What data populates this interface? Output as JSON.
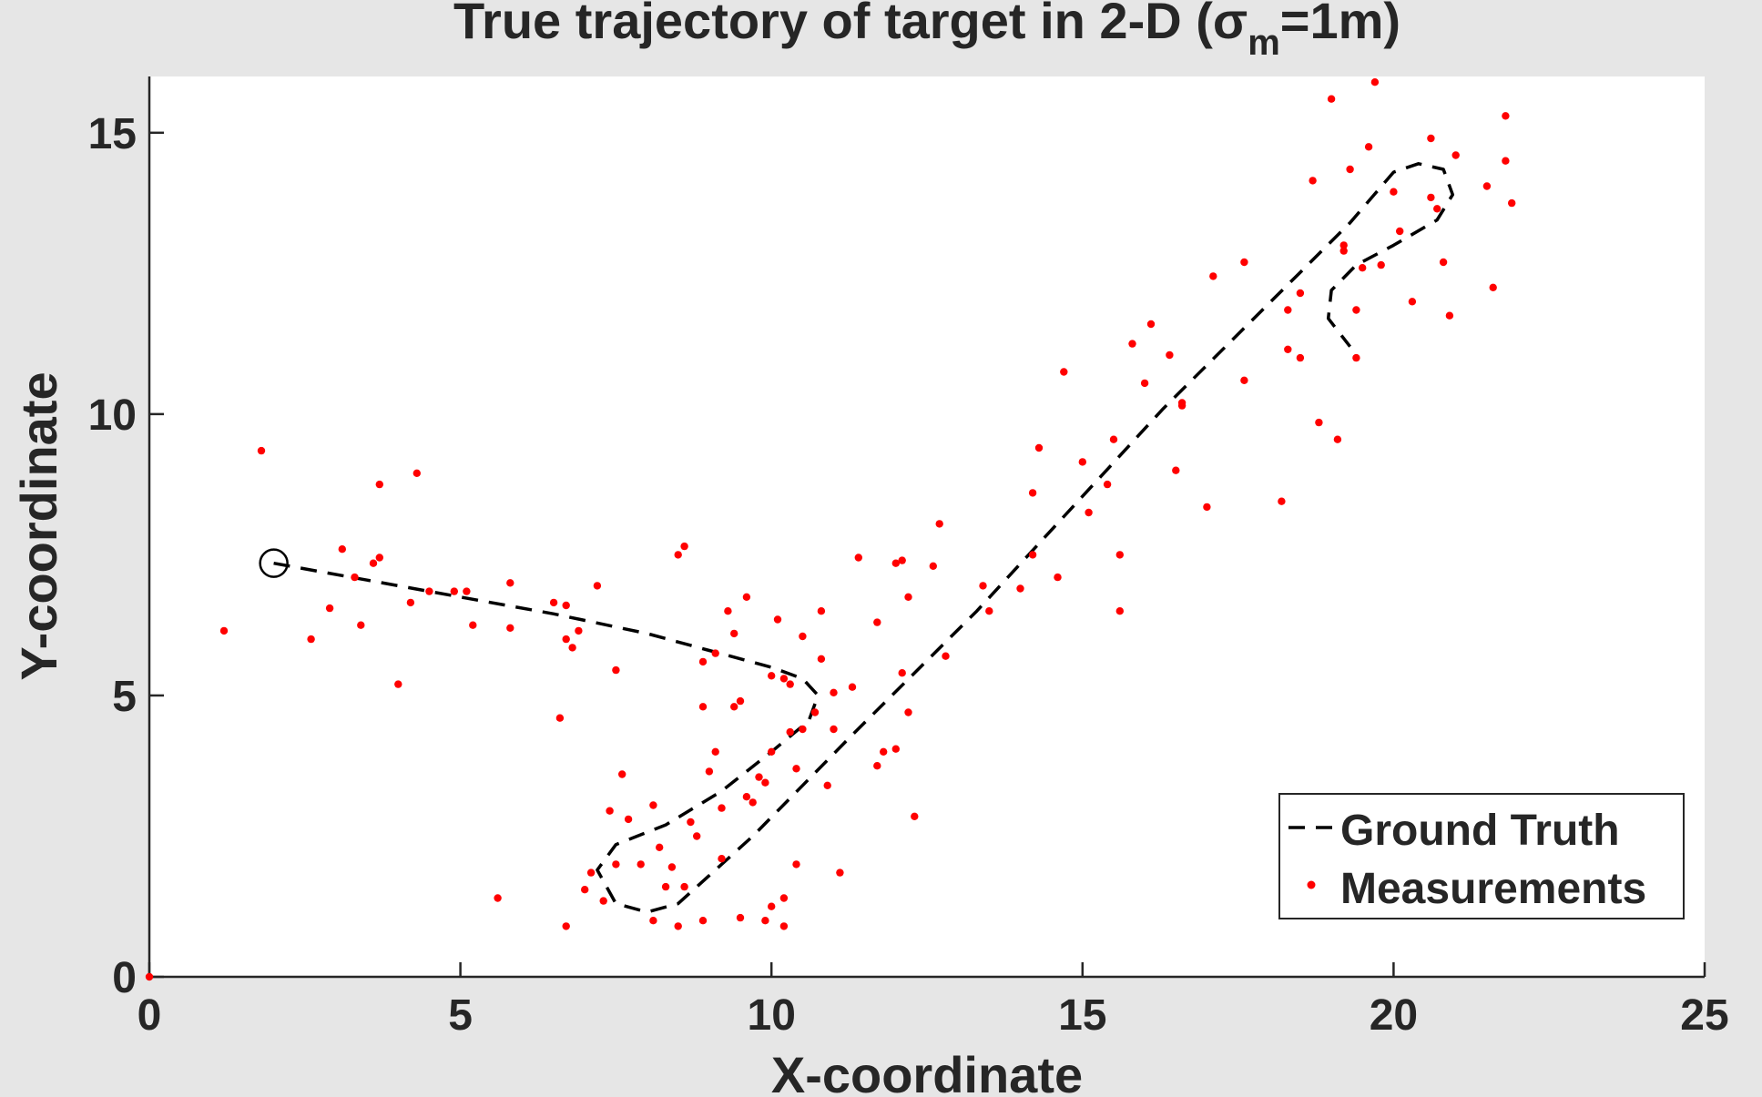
{
  "chart_data": {
    "type": "scatter",
    "title": {
      "main": "True trajectory of target in 2-D (",
      "sigma": "σ",
      "subscript": "m",
      "suffix": "=1m)"
    },
    "xlabel": "X-coordinate",
    "ylabel": "Y-coordinate",
    "xlim": [
      0,
      25
    ],
    "ylim": [
      0,
      16
    ],
    "xticks": [
      0,
      5,
      10,
      15,
      20,
      25
    ],
    "yticks": [
      0,
      5,
      10,
      15
    ],
    "xtick_labels": [
      "0",
      "5",
      "10",
      "15",
      "20",
      "25"
    ],
    "ytick_labels": [
      "0",
      "5",
      "10",
      "15"
    ],
    "grid": false,
    "legend_position": "bottom-right",
    "colors": {
      "ground_truth": "#000000",
      "measurements": "#ff0000",
      "axes_background": "#ffffff",
      "figure_background": "#e6e6e6"
    },
    "start_marker": {
      "x": 2.0,
      "y": 7.35
    },
    "series": [
      {
        "name": "Ground Truth",
        "style": "dashed-line",
        "points": [
          [
            2.0,
            7.35
          ],
          [
            3.5,
            7.05
          ],
          [
            5.0,
            6.75
          ],
          [
            6.5,
            6.45
          ],
          [
            8.0,
            6.1
          ],
          [
            9.0,
            5.8
          ],
          [
            10.0,
            5.5
          ],
          [
            10.5,
            5.3
          ],
          [
            10.75,
            5.0
          ],
          [
            10.6,
            4.55
          ],
          [
            10.0,
            4.0
          ],
          [
            9.2,
            3.3
          ],
          [
            8.3,
            2.7
          ],
          [
            7.5,
            2.35
          ],
          [
            7.2,
            1.9
          ],
          [
            7.5,
            1.3
          ],
          [
            8.0,
            1.15
          ],
          [
            8.5,
            1.3
          ],
          [
            9.0,
            1.8
          ],
          [
            9.7,
            2.5
          ],
          [
            10.5,
            3.4
          ],
          [
            11.3,
            4.3
          ],
          [
            12.3,
            5.4
          ],
          [
            13.3,
            6.5
          ],
          [
            14.3,
            7.7
          ],
          [
            15.3,
            8.9
          ],
          [
            16.3,
            10.1
          ],
          [
            17.3,
            11.2
          ],
          [
            18.3,
            12.3
          ],
          [
            19.3,
            13.4
          ],
          [
            20.0,
            14.3
          ],
          [
            20.4,
            14.45
          ],
          [
            20.8,
            14.35
          ],
          [
            20.95,
            13.9
          ],
          [
            20.7,
            13.45
          ],
          [
            20.0,
            13.0
          ],
          [
            19.4,
            12.65
          ],
          [
            19.0,
            12.2
          ],
          [
            18.95,
            11.7
          ],
          [
            19.3,
            11.2
          ]
        ]
      },
      {
        "name": "Measurements",
        "style": "dots",
        "points": [
          [
            0.0,
            0.0
          ],
          [
            1.2,
            6.15
          ],
          [
            1.8,
            9.35
          ],
          [
            2.6,
            6.0
          ],
          [
            2.9,
            6.55
          ],
          [
            3.1,
            7.6
          ],
          [
            3.3,
            7.1
          ],
          [
            3.4,
            6.25
          ],
          [
            3.6,
            7.35
          ],
          [
            3.7,
            7.45
          ],
          [
            3.7,
            8.75
          ],
          [
            4.0,
            5.2
          ],
          [
            4.2,
            6.65
          ],
          [
            4.3,
            8.95
          ],
          [
            4.5,
            6.85
          ],
          [
            4.9,
            6.85
          ],
          [
            5.1,
            6.85
          ],
          [
            5.2,
            6.25
          ],
          [
            5.8,
            6.2
          ],
          [
            5.8,
            7.0
          ],
          [
            6.5,
            6.65
          ],
          [
            6.6,
            4.6
          ],
          [
            6.7,
            6.6
          ],
          [
            6.7,
            6.0
          ],
          [
            6.8,
            5.85
          ],
          [
            6.9,
            6.15
          ],
          [
            7.2,
            6.95
          ],
          [
            7.5,
            5.45
          ],
          [
            8.5,
            7.5
          ],
          [
            8.6,
            7.65
          ],
          [
            8.9,
            5.6
          ],
          [
            9.1,
            5.75
          ],
          [
            9.3,
            6.5
          ],
          [
            9.4,
            6.1
          ],
          [
            9.6,
            6.75
          ],
          [
            10.1,
            6.35
          ],
          [
            10.2,
            5.3
          ],
          [
            10.3,
            5.2
          ],
          [
            10.5,
            6.05
          ],
          [
            10.8,
            6.5
          ],
          [
            10.8,
            5.65
          ],
          [
            11.0,
            5.05
          ],
          [
            11.3,
            5.15
          ],
          [
            11.4,
            7.45
          ],
          [
            11.7,
            6.3
          ],
          [
            12.1,
            7.4
          ],
          [
            12.2,
            6.75
          ],
          [
            12.6,
            7.3
          ],
          [
            13.4,
            6.95
          ],
          [
            14.2,
            7.5
          ],
          [
            14.3,
            9.4
          ],
          [
            14.6,
            7.1
          ],
          [
            14.7,
            10.75
          ],
          [
            15.1,
            8.25
          ],
          [
            15.4,
            8.75
          ],
          [
            15.6,
            6.5
          ],
          [
            15.6,
            7.5
          ],
          [
            15.8,
            11.25
          ],
          [
            16.1,
            11.6
          ],
          [
            16.4,
            11.05
          ],
          [
            16.5,
            9.0
          ],
          [
            16.6,
            10.2
          ],
          [
            17.0,
            8.35
          ],
          [
            17.1,
            12.45
          ],
          [
            17.6,
            12.7
          ],
          [
            17.6,
            10.6
          ],
          [
            18.2,
            8.45
          ],
          [
            18.3,
            11.15
          ],
          [
            18.5,
            11.0
          ],
          [
            18.7,
            14.15
          ],
          [
            18.8,
            9.85
          ],
          [
            19.0,
            15.6
          ],
          [
            19.1,
            9.55
          ],
          [
            19.2,
            13.0
          ],
          [
            19.3,
            14.35
          ],
          [
            19.4,
            11.85
          ],
          [
            19.4,
            11.0
          ],
          [
            19.6,
            14.75
          ],
          [
            19.7,
            15.9
          ],
          [
            19.8,
            12.65
          ],
          [
            20.0,
            13.95
          ],
          [
            20.1,
            13.25
          ],
          [
            20.3,
            12.0
          ],
          [
            20.6,
            14.9
          ],
          [
            20.6,
            13.85
          ],
          [
            20.8,
            12.7
          ],
          [
            20.9,
            11.75
          ],
          [
            21.0,
            14.6
          ],
          [
            21.5,
            14.05
          ],
          [
            21.6,
            12.25
          ],
          [
            21.8,
            15.3
          ],
          [
            21.9,
            13.75
          ],
          [
            7.4,
            2.95
          ],
          [
            7.5,
            2.0
          ],
          [
            7.6,
            3.6
          ],
          [
            7.7,
            2.8
          ],
          [
            7.9,
            2.0
          ],
          [
            8.1,
            1.0
          ],
          [
            8.1,
            3.05
          ],
          [
            8.2,
            2.3
          ],
          [
            8.3,
            1.6
          ],
          [
            8.5,
            0.9
          ],
          [
            8.6,
            1.6
          ],
          [
            8.7,
            2.75
          ],
          [
            8.8,
            2.5
          ],
          [
            8.9,
            1.0
          ],
          [
            9.0,
            3.65
          ],
          [
            9.1,
            4.0
          ],
          [
            9.2,
            2.1
          ],
          [
            9.5,
            1.05
          ],
          [
            9.5,
            4.9
          ],
          [
            9.6,
            3.2
          ],
          [
            9.7,
            3.1
          ],
          [
            9.8,
            3.55
          ],
          [
            9.9,
            3.45
          ],
          [
            9.9,
            1.0
          ],
          [
            10.0,
            1.25
          ],
          [
            10.0,
            4.0
          ],
          [
            10.2,
            1.4
          ],
          [
            10.2,
            0.9
          ],
          [
            10.4,
            3.7
          ],
          [
            10.5,
            4.4
          ],
          [
            10.9,
            3.4
          ],
          [
            11.0,
            4.4
          ],
          [
            11.1,
            1.85
          ],
          [
            12.0,
            4.05
          ],
          [
            12.2,
            4.7
          ],
          [
            12.3,
            2.85
          ],
          [
            6.7,
            0.9
          ],
          [
            7.0,
            1.55
          ],
          [
            5.6,
            1.4
          ],
          [
            7.1,
            1.85
          ],
          [
            7.3,
            1.35
          ],
          [
            8.4,
            1.95
          ],
          [
            8.9,
            4.8
          ],
          [
            9.2,
            3.0
          ],
          [
            10.0,
            5.35
          ],
          [
            10.3,
            4.35
          ],
          [
            10.4,
            2.0
          ],
          [
            10.7,
            4.7
          ],
          [
            11.7,
            3.75
          ],
          [
            12.1,
            5.4
          ],
          [
            12.8,
            5.7
          ],
          [
            12.7,
            8.05
          ],
          [
            13.5,
            6.5
          ],
          [
            14.0,
            6.9
          ],
          [
            14.2,
            8.6
          ],
          [
            15.0,
            9.15
          ],
          [
            15.5,
            9.55
          ],
          [
            16.0,
            10.55
          ],
          [
            16.6,
            10.15
          ],
          [
            18.3,
            11.85
          ],
          [
            18.5,
            12.15
          ],
          [
            19.2,
            12.9
          ],
          [
            19.5,
            12.6
          ],
          [
            20.7,
            13.65
          ],
          [
            21.8,
            14.5
          ],
          [
            11.8,
            4.0
          ],
          [
            12.0,
            7.35
          ],
          [
            9.4,
            4.8
          ]
        ]
      }
    ]
  }
}
